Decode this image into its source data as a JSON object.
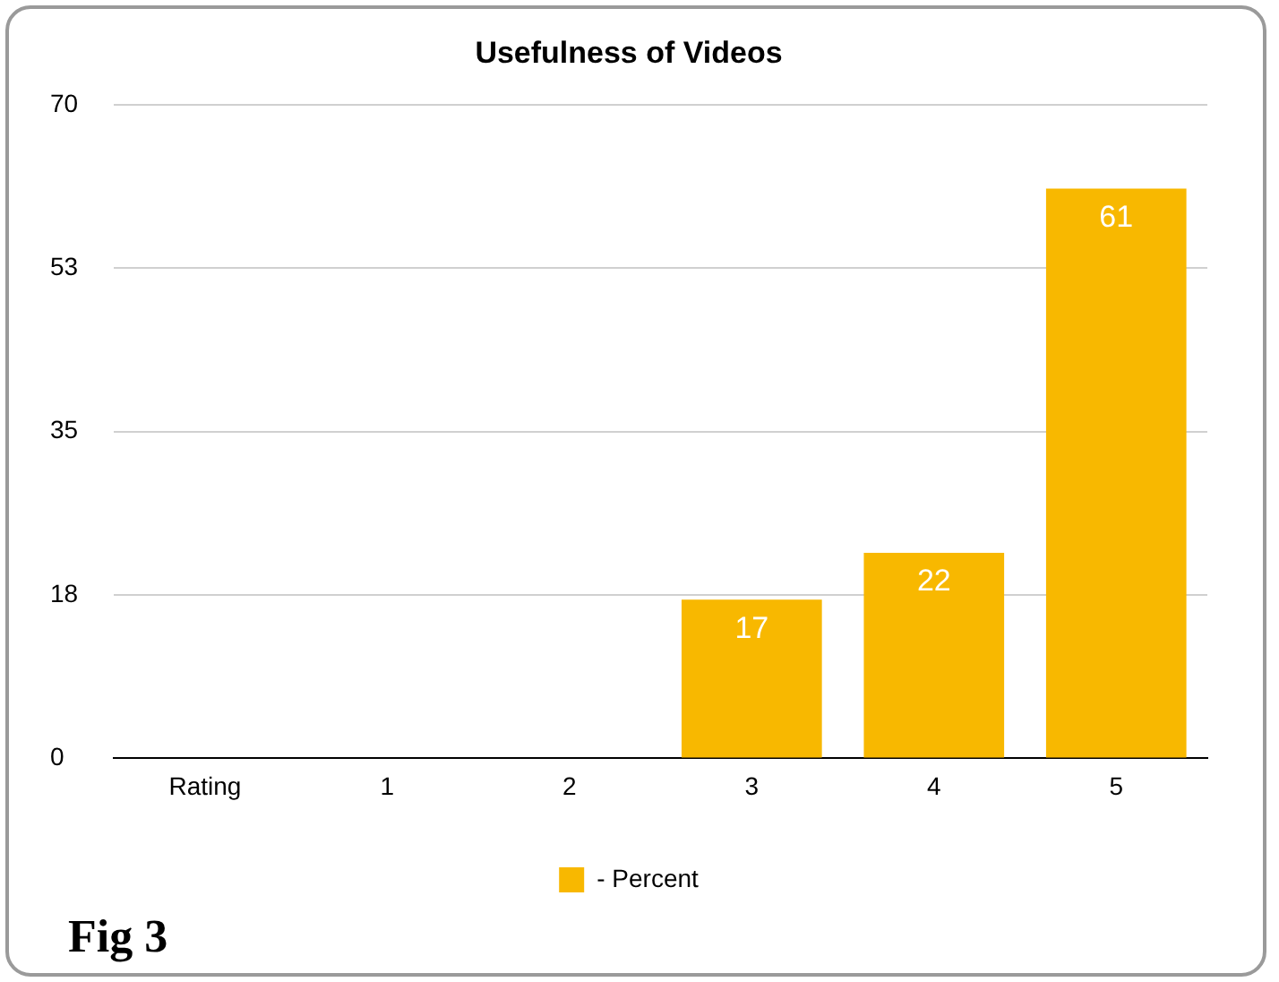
{
  "chart_data": {
    "type": "bar",
    "title": "Usefulness of Videos",
    "categories": [
      "Rating",
      "1",
      "2",
      "3",
      "4",
      "5"
    ],
    "series": [
      {
        "name": "- Percent",
        "color": "#f8b800",
        "values": [
          null,
          null,
          null,
          17,
          22,
          61
        ],
        "value_labels": [
          null,
          null,
          null,
          "17",
          "22",
          "61"
        ]
      }
    ],
    "ylim": [
      0,
      70
    ],
    "yticks": [
      0,
      {
        "value": 17.5,
        "label": "18"
      },
      35,
      {
        "value": 52.5,
        "label": "53"
      },
      70
    ],
    "grid": "y",
    "legend": "bottom",
    "annotations": [
      "Fig 3"
    ]
  }
}
